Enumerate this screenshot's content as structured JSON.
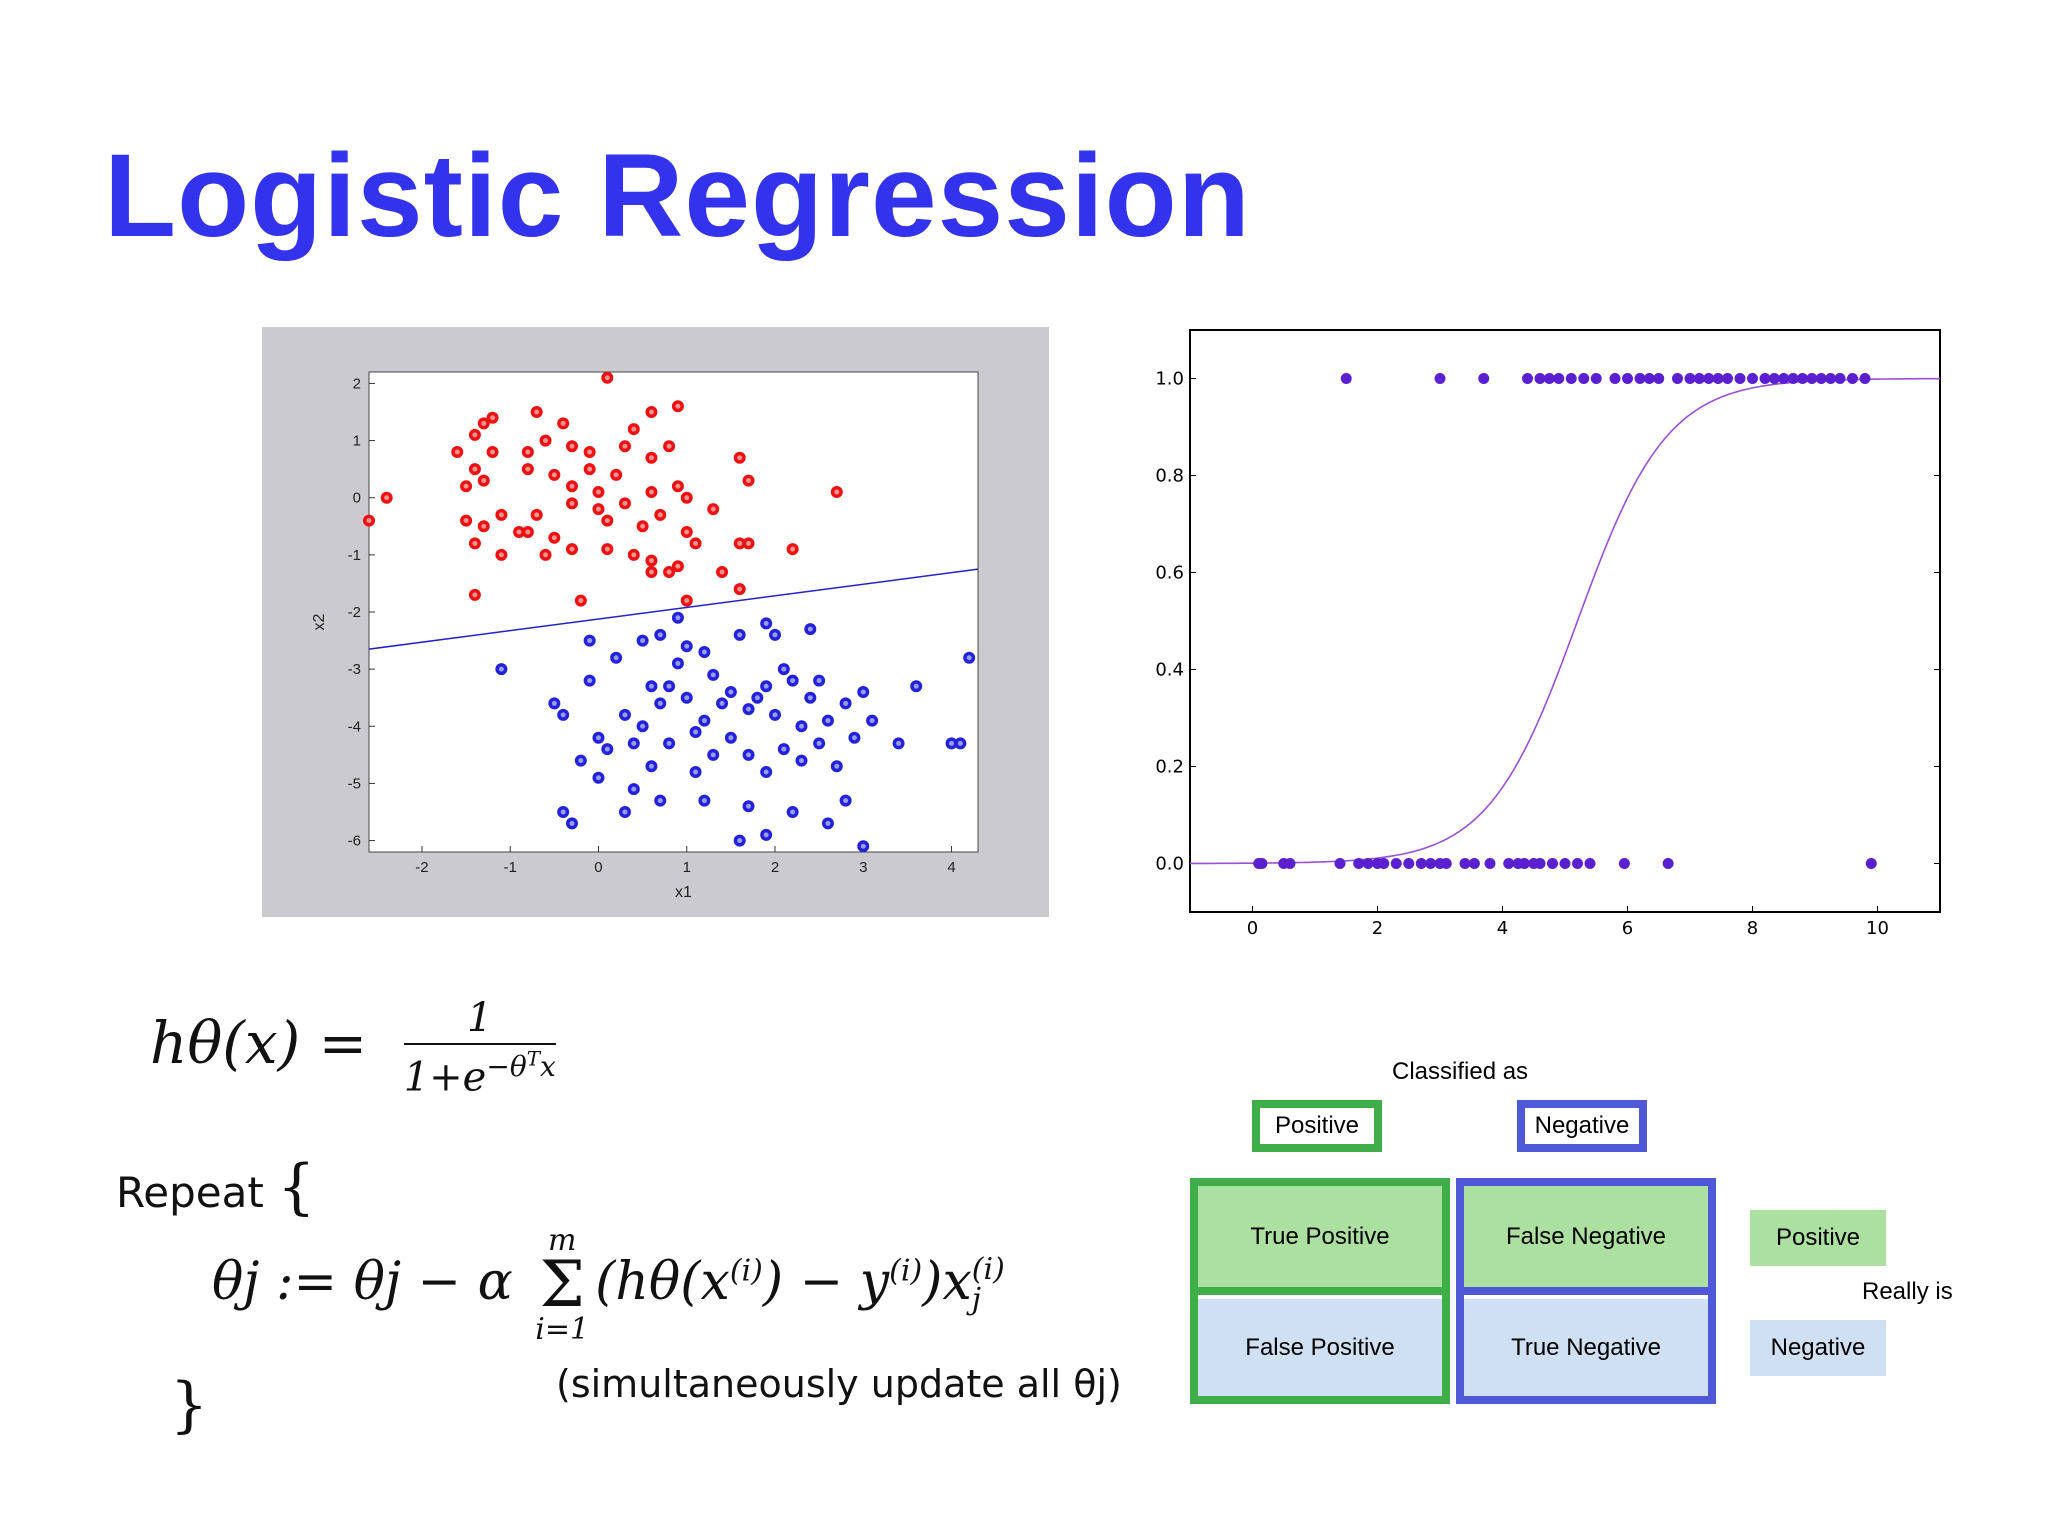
{
  "title": "Logistic Regression",
  "chart_data": [
    {
      "type": "scatter",
      "title": "",
      "xlabel": "x1",
      "ylabel": "x2",
      "xlim": [
        -2.6,
        4.3
      ],
      "ylim": [
        -6.2,
        2.2
      ],
      "xticks": [
        -2,
        -1,
        0,
        1,
        2,
        3,
        4
      ],
      "yticks": [
        2,
        1,
        0,
        -1,
        -2,
        -3,
        -4,
        -5,
        -6
      ],
      "grid": false,
      "legend": "none",
      "decision_line": {
        "x": [
          -2.6,
          4.3
        ],
        "y": [
          -2.65,
          -1.25
        ],
        "color": "#2222cc"
      },
      "series": [
        {
          "color": "#ee1111",
          "points": [
            [
              -1.4,
              1.1
            ],
            [
              -1.3,
              1.3
            ],
            [
              -1.2,
              1.4
            ],
            [
              -0.7,
              1.5
            ],
            [
              -0.4,
              1.3
            ],
            [
              0.1,
              2.1
            ],
            [
              0.6,
              1.5
            ],
            [
              0.9,
              1.6
            ],
            [
              0.4,
              1.2
            ],
            [
              -1.6,
              0.8
            ],
            [
              -1.4,
              0.5
            ],
            [
              -1.2,
              0.8
            ],
            [
              -0.8,
              0.8
            ],
            [
              -0.6,
              1.0
            ],
            [
              -0.3,
              0.9
            ],
            [
              -0.1,
              0.8
            ],
            [
              0.3,
              0.9
            ],
            [
              0.6,
              0.7
            ],
            [
              0.8,
              0.9
            ],
            [
              1.6,
              0.7
            ],
            [
              -1.5,
              0.2
            ],
            [
              -1.3,
              0.3
            ],
            [
              -0.8,
              0.5
            ],
            [
              -0.5,
              0.4
            ],
            [
              -0.3,
              0.2
            ],
            [
              -0.1,
              0.5
            ],
            [
              0.0,
              0.1
            ],
            [
              0.2,
              0.4
            ],
            [
              0.6,
              0.1
            ],
            [
              0.9,
              0.2
            ],
            [
              1.0,
              0.0
            ],
            [
              -2.6,
              -0.4
            ],
            [
              -2.4,
              0.0
            ],
            [
              -1.5,
              -0.4
            ],
            [
              -1.3,
              -0.5
            ],
            [
              -1.1,
              -0.3
            ],
            [
              -0.9,
              -0.6
            ],
            [
              -0.7,
              -0.3
            ],
            [
              -0.5,
              -0.7
            ],
            [
              -0.3,
              -0.1
            ],
            [
              0.0,
              -0.2
            ],
            [
              0.1,
              -0.4
            ],
            [
              0.3,
              -0.1
            ],
            [
              0.5,
              -0.5
            ],
            [
              0.7,
              -0.3
            ],
            [
              1.0,
              -0.6
            ],
            [
              1.3,
              -0.2
            ],
            [
              1.6,
              -0.8
            ],
            [
              1.7,
              -0.8
            ],
            [
              -1.4,
              -0.8
            ],
            [
              -1.1,
              -1.0
            ],
            [
              -0.6,
              -1.0
            ],
            [
              -0.3,
              -0.9
            ],
            [
              0.1,
              -0.9
            ],
            [
              0.4,
              -1.0
            ],
            [
              0.6,
              -1.1
            ],
            [
              0.8,
              -1.3
            ],
            [
              0.9,
              -1.2
            ],
            [
              1.1,
              -0.8
            ],
            [
              1.4,
              -1.3
            ],
            [
              2.2,
              -0.9
            ],
            [
              2.7,
              0.1
            ],
            [
              -1.4,
              -1.7
            ],
            [
              -0.2,
              -1.8
            ],
            [
              1.0,
              -1.8
            ],
            [
              1.7,
              0.3
            ],
            [
              1.6,
              -1.6
            ],
            [
              0.6,
              -1.3
            ],
            [
              -0.8,
              -0.6
            ]
          ]
        },
        {
          "color": "#2222dd",
          "points": [
            [
              -1.1,
              -3.0
            ],
            [
              -0.5,
              -3.6
            ],
            [
              -0.4,
              -3.8
            ],
            [
              -0.1,
              -2.5
            ],
            [
              -0.1,
              -3.2
            ],
            [
              0.2,
              -2.8
            ],
            [
              0.5,
              -2.5
            ],
            [
              0.7,
              -2.4
            ],
            [
              0.9,
              -2.1
            ],
            [
              1.0,
              -2.6
            ],
            [
              1.2,
              -2.7
            ],
            [
              1.6,
              -2.4
            ],
            [
              1.9,
              -2.2
            ],
            [
              2.0,
              -2.4
            ],
            [
              2.4,
              -2.3
            ],
            [
              0.0,
              -4.2
            ],
            [
              0.1,
              -4.4
            ],
            [
              0.3,
              -3.8
            ],
            [
              0.5,
              -4.0
            ],
            [
              0.7,
              -3.6
            ],
            [
              0.8,
              -3.3
            ],
            [
              1.0,
              -3.5
            ],
            [
              1.2,
              -3.9
            ],
            [
              1.4,
              -3.6
            ],
            [
              1.5,
              -3.4
            ],
            [
              1.7,
              -3.7
            ],
            [
              1.9,
              -3.3
            ],
            [
              2.0,
              -3.8
            ],
            [
              2.2,
              -3.2
            ],
            [
              2.4,
              -3.5
            ],
            [
              2.5,
              -3.2
            ],
            [
              2.6,
              -3.9
            ],
            [
              2.8,
              -3.6
            ],
            [
              3.0,
              -3.4
            ],
            [
              3.1,
              -3.9
            ],
            [
              0.0,
              -4.9
            ],
            [
              -0.2,
              -4.6
            ],
            [
              0.4,
              -5.1
            ],
            [
              0.6,
              -4.7
            ],
            [
              0.8,
              -4.3
            ],
            [
              1.1,
              -4.8
            ],
            [
              1.3,
              -4.5
            ],
            [
              1.5,
              -4.2
            ],
            [
              1.7,
              -4.5
            ],
            [
              1.9,
              -4.8
            ],
            [
              2.1,
              -4.4
            ],
            [
              2.3,
              -4.6
            ],
            [
              2.5,
              -4.3
            ],
            [
              2.7,
              -4.7
            ],
            [
              2.9,
              -4.2
            ],
            [
              -0.4,
              -5.5
            ],
            [
              -0.3,
              -5.7
            ],
            [
              0.3,
              -5.5
            ],
            [
              0.7,
              -5.3
            ],
            [
              1.2,
              -5.3
            ],
            [
              1.7,
              -5.4
            ],
            [
              1.9,
              -5.9
            ],
            [
              2.2,
              -5.5
            ],
            [
              2.6,
              -5.7
            ],
            [
              2.8,
              -5.3
            ],
            [
              1.6,
              -6.0
            ],
            [
              3.0,
              -6.1
            ],
            [
              3.6,
              -3.3
            ],
            [
              4.2,
              -2.8
            ],
            [
              4.0,
              -4.3
            ],
            [
              4.1,
              -4.3
            ],
            [
              0.4,
              -4.3
            ],
            [
              0.9,
              -2.9
            ],
            [
              1.8,
              -3.5
            ],
            [
              2.3,
              -4.0
            ],
            [
              1.3,
              -3.1
            ],
            [
              0.6,
              -3.3
            ],
            [
              1.1,
              -4.1
            ],
            [
              2.1,
              -3.0
            ],
            [
              3.4,
              -4.3
            ]
          ]
        }
      ]
    },
    {
      "type": "scatter",
      "title": "",
      "xlabel": "",
      "ylabel": "",
      "xlim": [
        -1,
        11
      ],
      "ylim": [
        -0.1,
        1.1
      ],
      "xticks": [
        "0",
        "2",
        "4",
        "6",
        "8",
        "10"
      ],
      "yticks": [
        "0.0",
        "0.2",
        "0.4",
        "0.6",
        "0.8",
        "1.0"
      ],
      "grid": false,
      "legend": "none",
      "curve": {
        "type": "sigmoid",
        "center": 5.2,
        "steepness": 1.4,
        "color": "#9a4fd8"
      },
      "point_color": "#5a1fcf",
      "points_y1": [
        1.5,
        3.0,
        3.7,
        4.4,
        4.6,
        4.75,
        4.9,
        5.1,
        5.3,
        5.5,
        5.8,
        6.0,
        6.2,
        6.35,
        6.5,
        6.8,
        7.0,
        7.15,
        7.3,
        7.45,
        7.6,
        7.8,
        8.0,
        8.2,
        8.35,
        8.5,
        8.65,
        8.8,
        8.95,
        9.1,
        9.25,
        9.4,
        9.6,
        9.8
      ],
      "points_y0": [
        0.1,
        0.15,
        0.5,
        0.6,
        1.4,
        1.7,
        1.85,
        2.0,
        2.1,
        2.3,
        2.5,
        2.7,
        2.85,
        3.0,
        3.1,
        3.4,
        3.55,
        3.8,
        4.1,
        4.25,
        4.35,
        4.5,
        4.6,
        4.8,
        5.0,
        5.2,
        5.4,
        5.95,
        6.65,
        9.9
      ]
    }
  ],
  "formulas": {
    "hypothesis_lhs": "hθ(x) =",
    "hypothesis_num": "1",
    "hypothesis_den": "1+e",
    "hypothesis_exp": "−θ",
    "hypothesis_exp_sup": "T",
    "hypothesis_exp_tail": "x",
    "repeat_label": "Repeat",
    "open_brace": "{",
    "update_lhs": "θj := θj − α",
    "sum_top": "m",
    "sum_sym": "Σ",
    "sum_bottom": "i=1",
    "update_rhs_1": "(hθ(x",
    "update_sup_i1": "(i)",
    "update_rhs_2": ") − y",
    "update_sup_i2": "(i)",
    "update_rhs_3": ")x",
    "update_sup_i3": "(i)",
    "update_sub_j": "j",
    "note": "(simultaneously update all θj)",
    "close_brace": "}"
  },
  "confusion_matrix": {
    "classified_as": "Classified as",
    "col_positive": "Positive",
    "col_negative": "Negative",
    "true_positive": "True Positive",
    "false_negative": "False Negative",
    "false_positive": "False Positive",
    "true_negative": "True Negative",
    "really_is": "Really is",
    "key_positive": "Positive",
    "key_negative": "Negative",
    "colors": {
      "green": "#3fae49",
      "blue": "#4f59d8",
      "light_green": "#ace0a1",
      "light_blue": "#cfe0f3"
    }
  }
}
